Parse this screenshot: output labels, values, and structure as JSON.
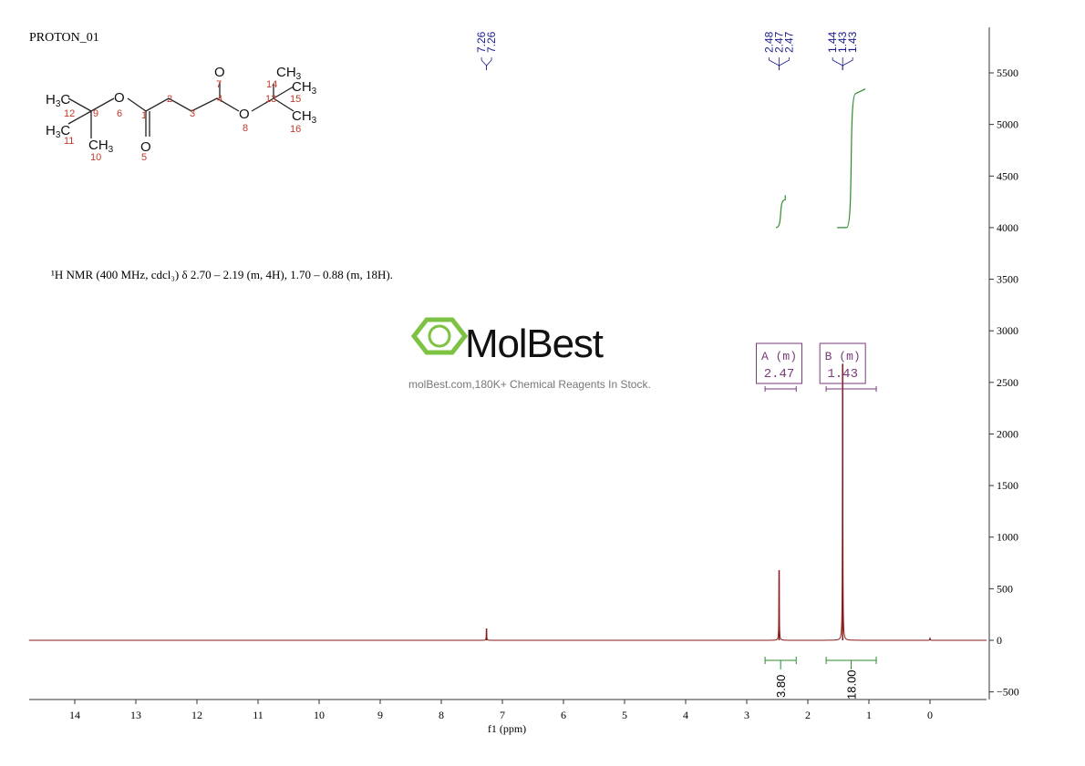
{
  "title": "PROTON_01",
  "nmr_description": "¹H NMR (400 MHz, cdcl₃) δ 2.70 – 2.19 (m, 4H), 1.70 – 0.88 (m, 18H).",
  "watermark": {
    "brand": "MolBest",
    "tagline": "molBest.com,180K+ Chemical Reagents In Stock.",
    "color": "#7dc242"
  },
  "structure": {
    "atoms": [
      "H3C",
      "H3C",
      "CH3",
      "O",
      "O",
      "O",
      "O",
      "CH3",
      "CH3",
      "CH3"
    ],
    "numbers": [
      "1",
      "2",
      "3",
      "4",
      "5",
      "6",
      "7",
      "8",
      "9",
      "10",
      "11",
      "12",
      "13",
      "14",
      "15",
      "16"
    ]
  },
  "chart_data": {
    "type": "line",
    "xlabel": "f1 (ppm)",
    "xlim": [
      14.75,
      -0.93
    ],
    "ylim": [
      -550,
      5900
    ],
    "xticks": [
      14,
      13,
      12,
      11,
      10,
      9,
      8,
      7,
      6,
      5,
      4,
      3,
      2,
      1,
      0
    ],
    "yticks": [
      5500,
      5000,
      4500,
      4000,
      3500,
      3000,
      2500,
      2000,
      1500,
      1000,
      500,
      0,
      -500
    ],
    "peaks": [
      {
        "ppm": 7.26,
        "height": 115
      },
      {
        "ppm": 2.47,
        "height": 680
      },
      {
        "ppm": 1.43,
        "height": 2680
      },
      {
        "ppm": 0.0,
        "height": 20
      }
    ],
    "peak_labels": [
      {
        "group": [
          "7.26",
          "7.26"
        ],
        "ppm": 7.26
      },
      {
        "group": [
          "2.48",
          "2.47",
          "2.47"
        ],
        "ppm": 2.47
      },
      {
        "group": [
          "1.44",
          "1.43",
          "1.43"
        ],
        "ppm": 1.43
      }
    ],
    "multiplets": [
      {
        "label": "A (m)",
        "shift": "2.47",
        "range": [
          2.7,
          2.19
        ]
      },
      {
        "label": "B (m)",
        "shift": "1.43",
        "range": [
          1.7,
          0.88
        ]
      }
    ],
    "integrals": [
      {
        "value": "3.80",
        "range": [
          2.7,
          2.19
        ],
        "y_start": 4000,
        "y_end": 4270
      },
      {
        "value": "18.00",
        "range": [
          1.7,
          0.88
        ],
        "y_start": 4000,
        "y_end": 5300
      }
    ],
    "colors": {
      "spectrum": "#8b1a1a",
      "integral": "#2e8b2e",
      "peak_label": "#1a1a8b",
      "multiplet": "#7a3a7a"
    }
  }
}
